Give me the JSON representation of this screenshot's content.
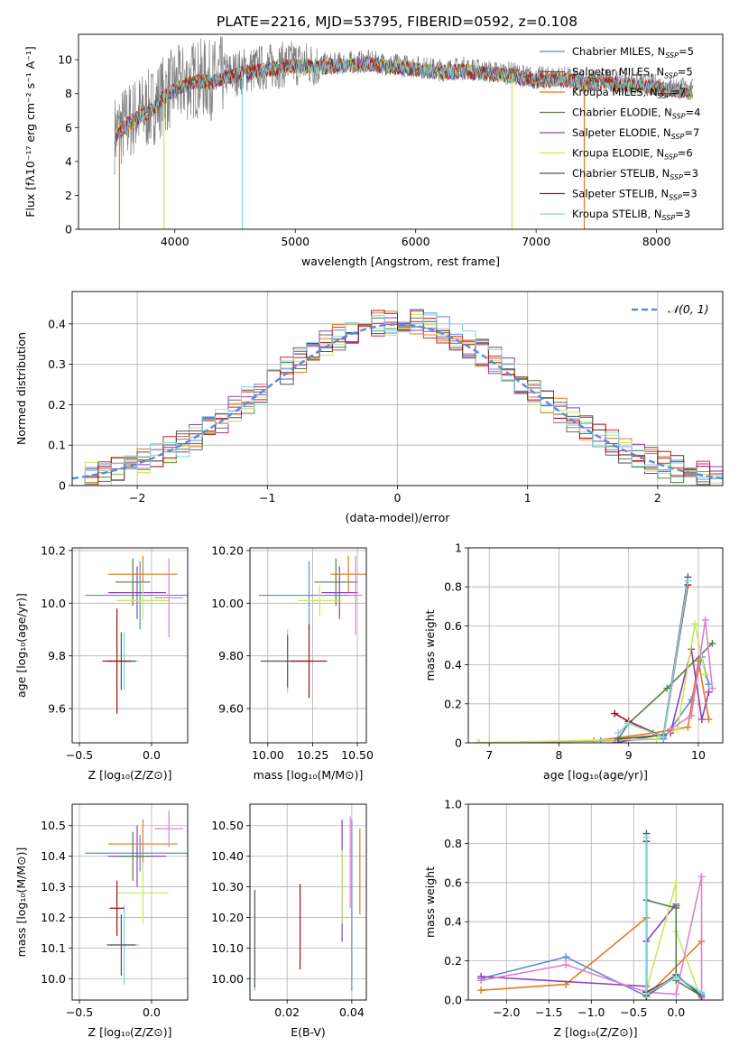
{
  "figure_title": "PLATE=2216, MJD=53795, FIBERID=0592, z=0.108",
  "colors": {
    "chabrier_miles": "#5b8bd9",
    "salpeter_miles": "#d62728",
    "kroupa_miles": "#e07b21",
    "chabrier_elodie": "#5b7d4a",
    "salpeter_elodie": "#8e3fb5",
    "kroupa_elodie": "#c8e85a",
    "chabrier_stelib": "#555555",
    "salpeter_stelib": "#a01010",
    "kroupa_stelib": "#7fd3e0",
    "extra_pink": "#e07fcf",
    "gauss": "#5b8bd9"
  },
  "chart_data": [
    {
      "id": "spectrum",
      "type": "line",
      "xlabel": "wavelength [Angstrom, rest frame]",
      "ylabel": "Flux [fλ10⁻¹⁷ erg cm⁻² s⁻¹ A⁻¹]",
      "xlim": [
        3200,
        8550
      ],
      "ylim": [
        0,
        11.5
      ],
      "xticks": [
        4000,
        5000,
        6000,
        7000,
        8000
      ],
      "yticks": [
        0,
        2,
        4,
        6,
        8,
        10
      ],
      "legend_position": "right",
      "legend": [
        {
          "label": "Chabrier MILES, N",
          "sub": "SSP",
          "tail": "=5",
          "color": "#5b8bd9"
        },
        {
          "label": "Salpeter MILES, N",
          "sub": "SSP",
          "tail": "=5",
          "color": "#d62728"
        },
        {
          "label": "Kroupa MILES, N",
          "sub": "SSP",
          "tail": "=7",
          "color": "#e07b21"
        },
        {
          "label": "Chabrier ELODIE, N",
          "sub": "SSP",
          "tail": "=4",
          "color": "#5b7d4a"
        },
        {
          "label": "Salpeter ELODIE, N",
          "sub": "SSP",
          "tail": "=7",
          "color": "#8e3fb5"
        },
        {
          "label": "Kroupa ELODIE, N",
          "sub": "SSP",
          "tail": "=6",
          "color": "#c8e85a"
        },
        {
          "label": "Chabrier STELIB, N",
          "sub": "SSP",
          "tail": "=3",
          "color": "#555555"
        },
        {
          "label": "Salpeter STELIB, N",
          "sub": "SSP",
          "tail": "=3",
          "color": "#a01010"
        },
        {
          "label": "Kroupa STELIB, N",
          "sub": "SSP",
          "tail": "=3",
          "color": "#7fd3e0"
        }
      ],
      "envelope": [
        [
          3500,
          5.6
        ],
        [
          3600,
          6.3
        ],
        [
          3700,
          6.8
        ],
        [
          3800,
          7.1
        ],
        [
          3900,
          7.9
        ],
        [
          4000,
          8.4
        ],
        [
          4100,
          8.7
        ],
        [
          4200,
          8.9
        ],
        [
          4300,
          8.8
        ],
        [
          4400,
          9.1
        ],
        [
          4500,
          9.2
        ],
        [
          4600,
          9.4
        ],
        [
          4700,
          9.5
        ],
        [
          4800,
          9.6
        ],
        [
          5000,
          9.8
        ],
        [
          5200,
          9.7
        ],
        [
          5400,
          9.8
        ],
        [
          5600,
          9.9
        ],
        [
          5800,
          9.7
        ],
        [
          6000,
          9.6
        ],
        [
          6200,
          9.4
        ],
        [
          6400,
          9.5
        ],
        [
          6600,
          9.3
        ],
        [
          6800,
          9.2
        ],
        [
          7000,
          8.9
        ],
        [
          7200,
          9.0
        ],
        [
          7400,
          8.7
        ],
        [
          7600,
          8.8
        ],
        [
          7800,
          8.6
        ],
        [
          8000,
          8.5
        ],
        [
          8200,
          8.3
        ],
        [
          8300,
          8.2
        ]
      ],
      "drops": [
        {
          "x": 3540,
          "color": "#e07b21"
        },
        {
          "x": 3910,
          "color": "#c8e85a"
        },
        {
          "x": 4560,
          "color": "#7fd3e0"
        },
        {
          "x": 6800,
          "color": "#c8e85a"
        },
        {
          "x": 7400,
          "color": "#e07b21"
        }
      ]
    },
    {
      "id": "residuals",
      "type": "line",
      "xlabel": "(data-model)/error",
      "ylabel": "Normed distribution",
      "xlim": [
        -2.5,
        2.5
      ],
      "ylim": [
        0,
        0.48
      ],
      "xticks": [
        -2,
        -1,
        0,
        1,
        2
      ],
      "yticks": [
        0.0,
        0.1,
        0.2,
        0.3,
        0.4
      ],
      "grid": true,
      "legend_position": "top-right",
      "legend_label": "𝒩(0, 1)",
      "bin_width": 0.1
    },
    {
      "id": "age_vs_Z",
      "type": "scatter",
      "xlabel": "Z [log₁₀(Z/Z⊙)]",
      "ylabel": "age  [log₁₀(age/yr)]",
      "xlim": [
        -0.55,
        0.25
      ],
      "ylim": [
        9.47,
        10.21
      ],
      "xticks": [
        -0.5,
        0.0
      ],
      "yticks": [
        9.6,
        9.8,
        10.0,
        10.2
      ],
      "grid": true,
      "points": [
        {
          "x": -0.08,
          "y": 10.03,
          "xerr": 0.38,
          "yerr": 0.13,
          "color": "#5b8bd9"
        },
        {
          "x": -0.1,
          "y": 10.04,
          "xerr": 0.2,
          "yerr": 0.1,
          "color": "#8e3fb5"
        },
        {
          "x": -0.06,
          "y": 10.11,
          "xerr": 0.24,
          "yerr": 0.07,
          "color": "#e07b21"
        },
        {
          "x": -0.13,
          "y": 10.08,
          "xerr": 0.12,
          "yerr": 0.09,
          "color": "#5b7d4a"
        },
        {
          "x": -0.06,
          "y": 10.01,
          "xerr": 0.18,
          "yerr": 0.07,
          "color": "#c8e85a"
        },
        {
          "x": -0.19,
          "y": 9.78,
          "xerr": 0.1,
          "yerr": 0.11,
          "color": "#7fd3e0"
        },
        {
          "x": -0.21,
          "y": 9.78,
          "xerr": 0.1,
          "yerr": 0.11,
          "color": "#555555"
        },
        {
          "x": -0.24,
          "y": 9.78,
          "xerr": 0.1,
          "yerr": 0.2,
          "color": "#a01010"
        },
        {
          "x": 0.12,
          "y": 10.02,
          "xerr": 0.1,
          "yerr": 0.15,
          "color": "#e07fcf"
        }
      ]
    },
    {
      "id": "age_vs_mass",
      "type": "scatter",
      "xlabel": "mass [log₁₀(M/M⊙)]",
      "ylabel": "",
      "xlim": [
        9.9,
        10.55
      ],
      "ylim": [
        9.47,
        10.21
      ],
      "xticks": [
        10.0,
        10.25,
        10.5
      ],
      "yticks": [
        9.6,
        9.8,
        10.0,
        10.2
      ],
      "grid": true,
      "points": [
        {
          "x": 10.23,
          "y": 10.03,
          "xerr": 0.28,
          "yerr": 0.13,
          "color": "#5b8bd9"
        },
        {
          "x": 10.4,
          "y": 10.04,
          "xerr": 0.1,
          "yerr": 0.1,
          "color": "#8e3fb5"
        },
        {
          "x": 10.45,
          "y": 10.11,
          "xerr": 0.1,
          "yerr": 0.07,
          "color": "#e07b21"
        },
        {
          "x": 10.38,
          "y": 10.08,
          "xerr": 0.12,
          "yerr": 0.09,
          "color": "#5b7d4a"
        },
        {
          "x": 10.29,
          "y": 10.01,
          "xerr": 0.12,
          "yerr": 0.06,
          "color": "#c8e85a"
        },
        {
          "x": 10.11,
          "y": 9.78,
          "xerr": 0.13,
          "yerr": 0.12,
          "color": "#7fd3e0"
        },
        {
          "x": 10.11,
          "y": 9.78,
          "xerr": 0.15,
          "yerr": 0.1,
          "color": "#555555"
        },
        {
          "x": 10.23,
          "y": 9.78,
          "xerr": 0.1,
          "yerr": 0.14,
          "color": "#a01010"
        },
        {
          "x": 10.49,
          "y": 10.03,
          "xerr": 0.04,
          "yerr": 0.15,
          "color": "#e07fcf"
        }
      ]
    },
    {
      "id": "weight_vs_age",
      "type": "line",
      "xlabel": "age  [log₁₀(age/yr)]",
      "ylabel": "mass weight",
      "xlim": [
        6.7,
        10.35
      ],
      "ylim": [
        0,
        1.0
      ],
      "xticks": [
        7,
        8,
        9,
        10
      ],
      "yticks": [
        0.0,
        0.2,
        0.4,
        0.6,
        0.8,
        1.0
      ],
      "grid": true,
      "series": [
        {
          "color": "#5b8bd9",
          "points": [
            [
              6.85,
              0.0
            ],
            [
              8.6,
              0.01
            ],
            [
              9.5,
              0.02
            ],
            [
              9.9,
              0.22
            ],
            [
              10.05,
              0.44
            ],
            [
              10.15,
              0.3
            ]
          ]
        },
        {
          "color": "#e07b21",
          "points": [
            [
              6.85,
              0.0
            ],
            [
              8.5,
              0.01
            ],
            [
              9.35,
              0.05
            ],
            [
              9.85,
              0.08
            ],
            [
              10.0,
              0.42
            ],
            [
              10.15,
              0.12
            ]
          ]
        },
        {
          "color": "#5b7d4a",
          "points": [
            [
              8.85,
              0.02
            ],
            [
              9.0,
              0.1
            ],
            [
              9.55,
              0.28
            ],
            [
              10.2,
              0.51
            ]
          ]
        },
        {
          "color": "#8e3fb5",
          "points": [
            [
              8.8,
              0.0
            ],
            [
              9.6,
              0.05
            ],
            [
              9.9,
              0.48
            ],
            [
              10.05,
              0.12
            ],
            [
              10.15,
              0.26
            ]
          ]
        },
        {
          "color": "#c8e85a",
          "points": [
            [
              6.85,
              0.0
            ],
            [
              9.4,
              0.02
            ],
            [
              9.7,
              0.07
            ],
            [
              9.95,
              0.61
            ],
            [
              10.1,
              0.35
            ]
          ]
        },
        {
          "color": "#555555",
          "points": [
            [
              8.85,
              0.02
            ],
            [
              9.5,
              0.04
            ],
            [
              9.85,
              0.85
            ]
          ]
        },
        {
          "color": "#a01010",
          "points": [
            [
              8.8,
              0.15
            ],
            [
              9.0,
              0.11
            ],
            [
              9.5,
              0.03
            ],
            [
              9.85,
              0.81
            ]
          ]
        },
        {
          "color": "#7fd3e0",
          "points": [
            [
              8.85,
              0.05
            ],
            [
              9.0,
              0.1
            ],
            [
              9.5,
              0.03
            ],
            [
              9.85,
              0.83
            ]
          ]
        },
        {
          "color": "#e07fcf",
          "points": [
            [
              9.6,
              0.07
            ],
            [
              9.9,
              0.14
            ],
            [
              10.1,
              0.63
            ],
            [
              10.2,
              0.28
            ]
          ]
        }
      ]
    },
    {
      "id": "mass_vs_Z",
      "type": "scatter",
      "xlabel": "Z [log₁₀(Z/Z⊙)]",
      "ylabel": "mass [log₁₀(M/M⊙)]",
      "xlim": [
        -0.55,
        0.25
      ],
      "ylim": [
        9.93,
        10.57
      ],
      "xticks": [
        -0.5,
        0.0
      ],
      "yticks": [
        10.0,
        10.1,
        10.2,
        10.3,
        10.4,
        10.5
      ],
      "grid": true,
      "points": [
        {
          "x": -0.08,
          "y": 10.41,
          "xerr": 0.38,
          "yerr": 0.06,
          "color": "#5b8bd9"
        },
        {
          "x": -0.1,
          "y": 10.4,
          "xerr": 0.2,
          "yerr": 0.1,
          "color": "#8e3fb5"
        },
        {
          "x": -0.06,
          "y": 10.44,
          "xerr": 0.24,
          "yerr": 0.08,
          "color": "#e07b21"
        },
        {
          "x": -0.13,
          "y": 10.4,
          "xerr": 0.12,
          "yerr": 0.08,
          "color": "#5b7d4a"
        },
        {
          "x": -0.06,
          "y": 10.28,
          "xerr": 0.18,
          "yerr": 0.1,
          "color": "#c8e85a"
        },
        {
          "x": -0.19,
          "y": 10.11,
          "xerr": 0.1,
          "yerr": 0.13,
          "color": "#7fd3e0"
        },
        {
          "x": -0.21,
          "y": 10.11,
          "xerr": 0.1,
          "yerr": 0.1,
          "color": "#555555"
        },
        {
          "x": -0.24,
          "y": 10.23,
          "xerr": 0.05,
          "yerr": 0.09,
          "color": "#a01010"
        },
        {
          "x": 0.12,
          "y": 10.49,
          "xerr": 0.1,
          "yerr": 0.06,
          "color": "#e07fcf"
        }
      ]
    },
    {
      "id": "mass_vs_EBV",
      "type": "scatter",
      "xlabel": "E(B-V)",
      "ylabel": "",
      "xlim": [
        0.0085,
        0.0445
      ],
      "ylim": [
        9.93,
        10.57
      ],
      "xticks": [
        0.02,
        0.04
      ],
      "yticks": [
        10.0,
        10.1,
        10.2,
        10.3,
        10.4,
        10.5
      ],
      "grid": true,
      "points": [
        {
          "x": 0.04,
          "y": 10.24,
          "xerr": 0,
          "yerr": 0.28,
          "color": "#5b8bd9"
        },
        {
          "x": 0.0425,
          "y": 10.35,
          "xerr": 0,
          "yerr": 0.14,
          "color": "#e07b21"
        },
        {
          "x": 0.037,
          "y": 10.32,
          "xerr": 0,
          "yerr": 0.2,
          "color": "#8e3fb5"
        },
        {
          "x": 0.037,
          "y": 10.3,
          "xerr": 0,
          "yerr": 0.12,
          "color": "#c8e85a"
        },
        {
          "x": 0.0395,
          "y": 10.38,
          "xerr": 0,
          "yerr": 0.15,
          "color": "#e07fcf"
        },
        {
          "x": 0.024,
          "y": 10.17,
          "xerr": 0,
          "yerr": 0.14,
          "color": "#a01010"
        },
        {
          "x": 0.01,
          "y": 10.11,
          "xerr": 0,
          "yerr": 0.15,
          "color": "#7fd3e0"
        },
        {
          "x": 0.01,
          "y": 10.13,
          "xerr": 0,
          "yerr": 0.16,
          "color": "#555555"
        }
      ]
    },
    {
      "id": "weight_vs_Z",
      "type": "line",
      "xlabel": "Z [log₁₀(Z/Z⊙)]",
      "ylabel": "mass weight",
      "xlim": [
        -2.45,
        0.55
      ],
      "ylim": [
        0,
        1.0
      ],
      "xticks": [
        -2.0,
        -1.5,
        -1.0,
        -0.5,
        0.0
      ],
      "yticks": [
        0.0,
        0.2,
        0.4,
        0.6,
        0.8,
        1.0
      ],
      "grid": true,
      "series": [
        {
          "color": "#5b8bd9",
          "points": [
            [
              -2.3,
              0.11
            ],
            [
              -1.3,
              0.22
            ],
            [
              -0.35,
              0.02
            ],
            [
              0.0,
              0.12
            ],
            [
              0.3,
              0.03
            ]
          ]
        },
        {
          "color": "#e07b21",
          "points": [
            [
              -2.3,
              0.05
            ],
            [
              -1.3,
              0.08
            ],
            [
              -0.35,
              0.42
            ],
            [
              -0.35,
              0.02
            ],
            [
              0.3,
              0.3
            ]
          ]
        },
        {
          "color": "#8e3fb5",
          "points": [
            [
              -2.3,
              0.12
            ],
            [
              -0.35,
              0.07
            ],
            [
              -0.35,
              0.3
            ],
            [
              0.0,
              0.49
            ],
            [
              0.0,
              0.48
            ]
          ]
        },
        {
          "color": "#c8e85a",
          "points": [
            [
              -0.35,
              0.05
            ],
            [
              0.0,
              0.6
            ],
            [
              0.0,
              0.35
            ],
            [
              0.3,
              0.0
            ]
          ]
        },
        {
          "color": "#5b7d4a",
          "points": [
            [
              -0.35,
              0.51
            ],
            [
              0.0,
              0.47
            ],
            [
              0.0,
              0.1
            ],
            [
              0.3,
              0.02
            ]
          ]
        },
        {
          "color": "#e07fcf",
          "points": [
            [
              -2.3,
              0.1
            ],
            [
              -1.3,
              0.18
            ],
            [
              -0.35,
              0.04
            ],
            [
              0.0,
              0.03
            ],
            [
              0.3,
              0.63
            ],
            [
              0.3,
              0.01
            ]
          ]
        },
        {
          "color": "#555555",
          "points": [
            [
              -0.35,
              0.85
            ],
            [
              -0.35,
              0.02
            ],
            [
              0.0,
              0.13
            ],
            [
              0.3,
              0.02
            ]
          ]
        },
        {
          "color": "#a01010",
          "points": [
            [
              -0.35,
              0.81
            ],
            [
              -0.35,
              0.04
            ],
            [
              0.0,
              0.12
            ]
          ]
        },
        {
          "color": "#7fd3e0",
          "points": [
            [
              -0.35,
              0.83
            ],
            [
              -0.35,
              0.03
            ],
            [
              0.0,
              0.12
            ],
            [
              0.3,
              0.04
            ]
          ]
        }
      ]
    }
  ]
}
